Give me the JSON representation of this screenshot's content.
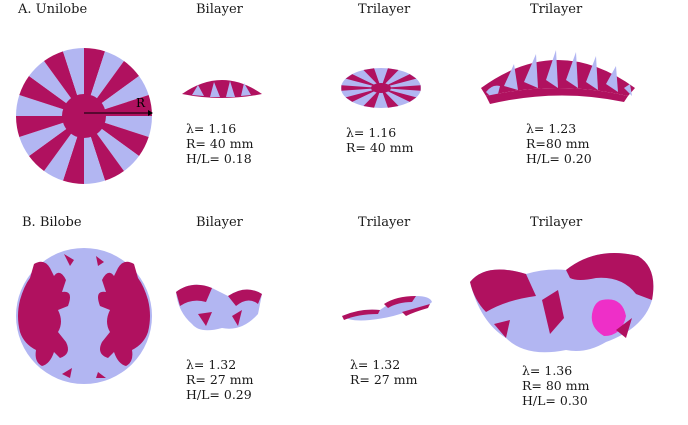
{
  "sections": [
    {
      "label": "A. Unilobe",
      "columns": [
        {
          "header": "Bilayer",
          "params": [
            "λ= 1.16",
            "R= 40 mm",
            "H/L= 0.18"
          ]
        },
        {
          "header": "Trilayer",
          "params": [
            "λ= 1.16",
            "R= 40 mm"
          ]
        },
        {
          "header": "Trilayer",
          "params": [
            "λ= 1.23",
            "R=80 mm",
            "H/L= 0.20"
          ]
        }
      ],
      "radius_label": "R"
    },
    {
      "label": "B. Bilobe",
      "columns": [
        {
          "header": "Bilayer",
          "params": [
            "λ= 1.32",
            "R= 27 mm",
            "H/L= 0.29"
          ]
        },
        {
          "header": "Trilayer",
          "params": [
            "λ= 1.32",
            "R= 27 mm"
          ]
        },
        {
          "header": "Trilayer",
          "params": [
            "λ= 1.36",
            "R= 80 mm",
            "H/L= 0.30"
          ]
        }
      ]
    }
  ],
  "colors": {
    "magenta": "#b0115f",
    "lavender": "#b2b6f2",
    "highlight": "#ee2fc8"
  }
}
